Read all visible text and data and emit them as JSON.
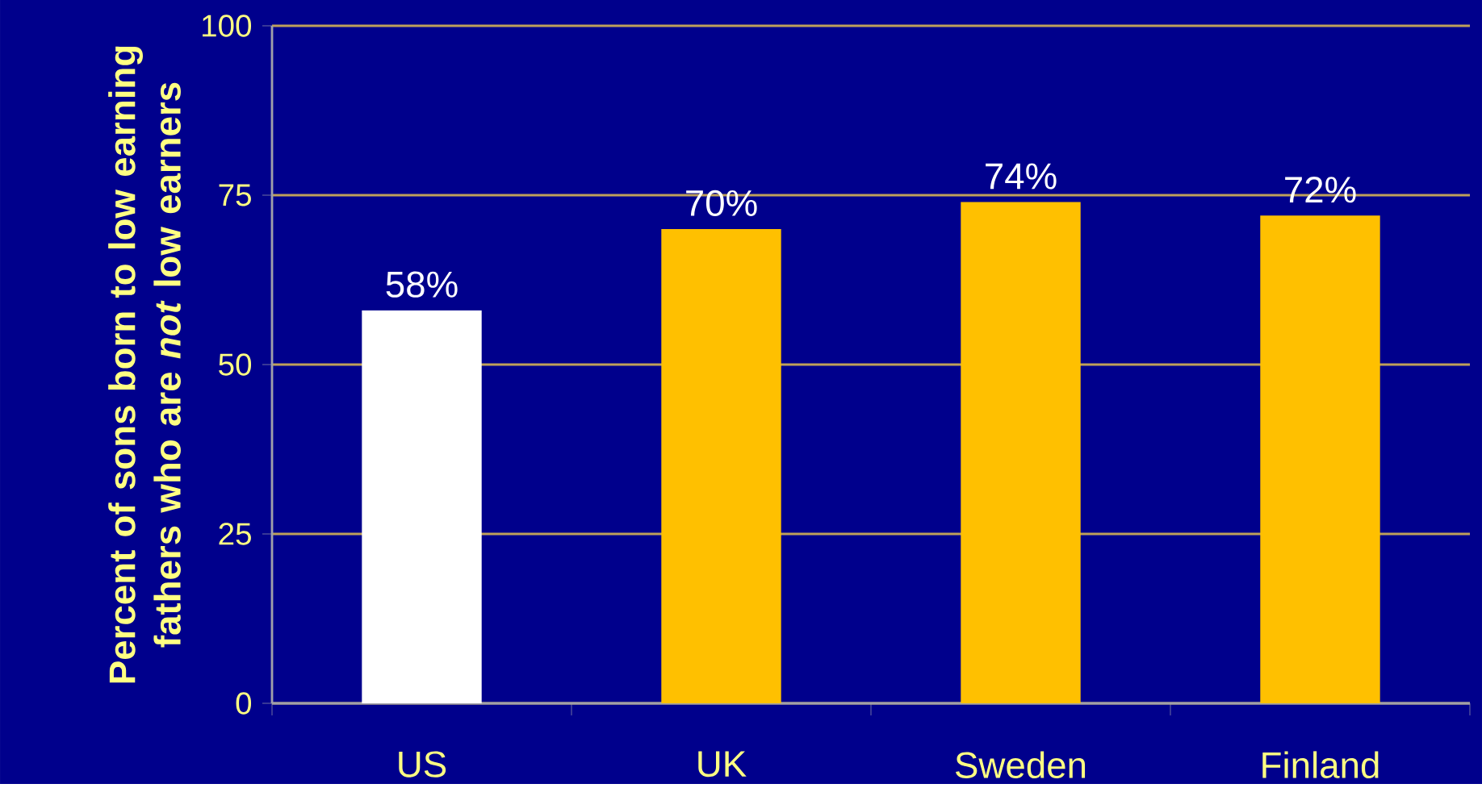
{
  "chart_data": {
    "type": "bar",
    "categories": [
      "US",
      "UK",
      "Sweden",
      "Finland"
    ],
    "values": [
      58,
      70,
      74,
      72
    ],
    "colors": [
      "#ffffff",
      "#ffc000",
      "#ffc000",
      "#ffc000"
    ],
    "value_labels": [
      "58%",
      "70%",
      "74%",
      "72%"
    ],
    "ylabel": "Percent of sons born to low earning fathers who are *not* low earners",
    "ylim": [
      0,
      100
    ],
    "yticks": [
      0,
      25,
      50,
      75,
      100
    ],
    "grid": "y"
  }
}
